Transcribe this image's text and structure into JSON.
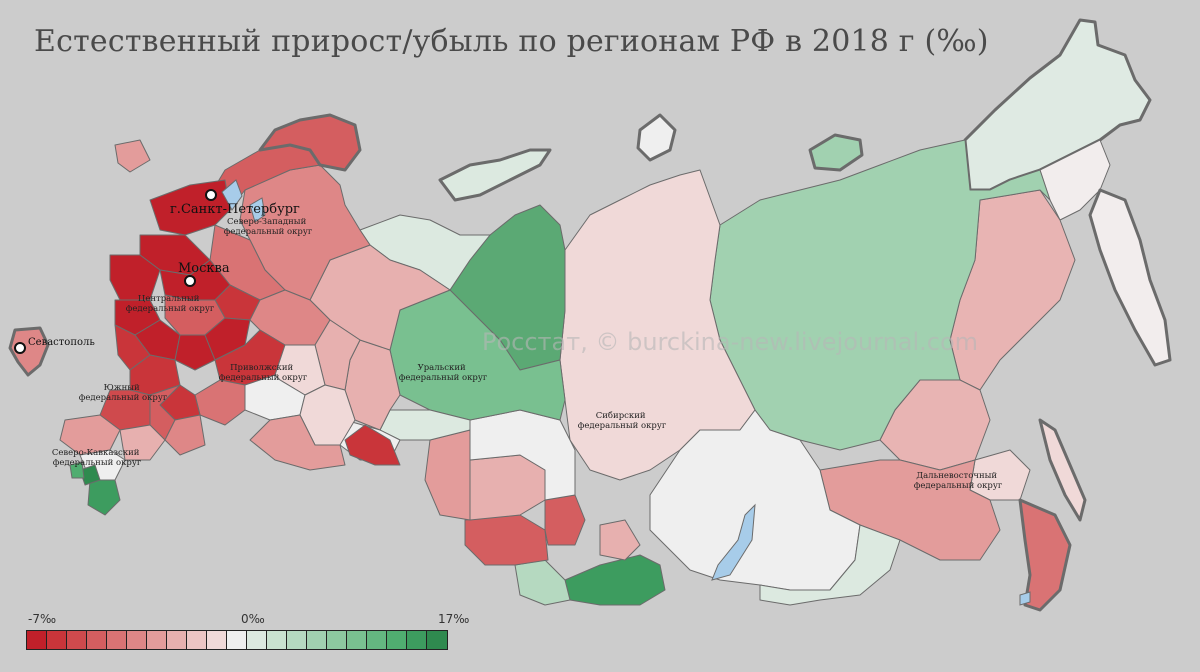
{
  "title": "Естественный прирост/убыль по регионам РФ в 2018 г (‰)",
  "watermark": "Росстат, © burckina-new.livejournal.com",
  "cities": {
    "spb": "г.Санкт-Петербург",
    "moscow": "Москва",
    "sevastopol": "Севастополь"
  },
  "districts": {
    "northwest": [
      "Северо-Западный",
      "федеральный округ"
    ],
    "central": [
      "Центральный",
      "федеральный округ"
    ],
    "southern": [
      "Южный",
      "федеральный округ"
    ],
    "caucasus": [
      "Северо-Кавказский",
      "федеральный округ"
    ],
    "volga": [
      "Приволжский",
      "федеральный округ"
    ],
    "ural": [
      "Уральский",
      "федеральный округ"
    ],
    "siberian": [
      "Сибирский",
      "федеральный округ"
    ],
    "fareast": [
      "Дальневосточный",
      "федеральный округ"
    ]
  },
  "legend": {
    "min_label": "-7‰",
    "zero_label": "0‰",
    "max_label": "17‰",
    "colors": [
      "#c0202a",
      "#c9353a",
      "#cf4a4d",
      "#d45e60",
      "#d97374",
      "#de8787",
      "#e39c9b",
      "#e7b0af",
      "#ecc5c4",
      "#f0d9d8",
      "#efefef",
      "#dce9e0",
      "#c9e2d0",
      "#b5d9c0",
      "#a1d1b0",
      "#8dc9a0",
      "#79c090",
      "#64b680",
      "#50ad70",
      "#3d9c5f",
      "#2f8a4f"
    ]
  },
  "colors": {
    "background": "#cccccc",
    "border": "#6b6b6b",
    "lake": "#a7cce9"
  }
}
